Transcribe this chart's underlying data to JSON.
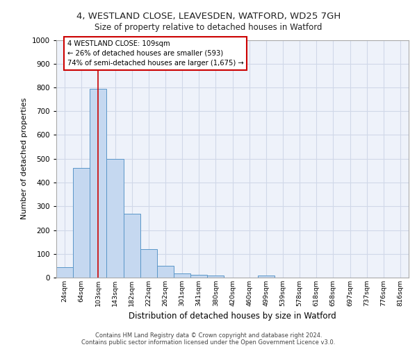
{
  "title_line1": "4, WESTLAND CLOSE, LEAVESDEN, WATFORD, WD25 7GH",
  "title_line2": "Size of property relative to detached houses in Watford",
  "xlabel": "Distribution of detached houses by size in Watford",
  "ylabel": "Number of detached properties",
  "footer_line1": "Contains HM Land Registry data © Crown copyright and database right 2024.",
  "footer_line2": "Contains public sector information licensed under the Open Government Licence v3.0.",
  "categories": [
    "24sqm",
    "64sqm",
    "103sqm",
    "143sqm",
    "182sqm",
    "222sqm",
    "262sqm",
    "301sqm",
    "341sqm",
    "380sqm",
    "420sqm",
    "460sqm",
    "499sqm",
    "539sqm",
    "578sqm",
    "618sqm",
    "658sqm",
    "697sqm",
    "737sqm",
    "776sqm",
    "816sqm"
  ],
  "bar_values": [
    45,
    460,
    795,
    500,
    270,
    120,
    50,
    18,
    12,
    10,
    0,
    0,
    8,
    0,
    0,
    0,
    0,
    0,
    0,
    0,
    0
  ],
  "bar_color": "#c5d8f0",
  "bar_edge_color": "#5a96c8",
  "ylim": [
    0,
    1000
  ],
  "yticks": [
    0,
    100,
    200,
    300,
    400,
    500,
    600,
    700,
    800,
    900,
    1000
  ],
  "red_line_x": 2,
  "annotation_title": "4 WESTLAND CLOSE: 109sqm",
  "annotation_line1": "← 26% of detached houses are smaller (593)",
  "annotation_line2": "74% of semi-detached houses are larger (1,675) →",
  "annotation_box_color": "#ffffff",
  "annotation_border_color": "#cc0000",
  "grid_color": "#d0d8e8",
  "background_color": "#eef2fa"
}
